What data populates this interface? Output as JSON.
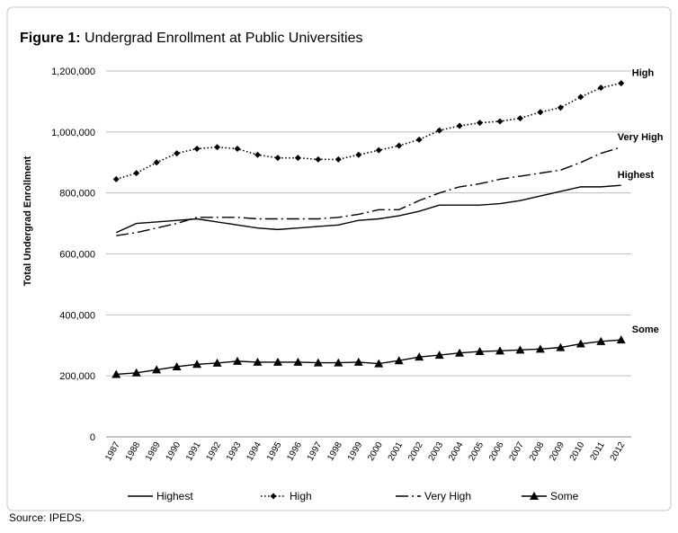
{
  "chart_data": {
    "type": "line",
    "title_lead": "Figure 1:",
    "title": "Undergrad Enrollment at Public Universities",
    "y_label": "Total Undergrad Enrollment",
    "source": "Source: IPEDS.",
    "categories": [
      "1987",
      "1988",
      "1989",
      "1990",
      "1991",
      "1992",
      "1993",
      "1994",
      "1995",
      "1996",
      "1997",
      "1998",
      "1999",
      "2000",
      "2001",
      "2002",
      "2003",
      "2004",
      "2005",
      "2006",
      "2007",
      "2008",
      "2009",
      "2010",
      "2011",
      "2012"
    ],
    "ylim": [
      0,
      1200000
    ],
    "yticks": [
      0,
      {
        "value": 200000,
        "label": "200,000"
      },
      {
        "value": 400000,
        "label": "400,000"
      },
      {
        "value": 600000,
        "label": "600,000"
      },
      {
        "value": 800000,
        "label": "800,000"
      },
      {
        "value": 1000000,
        "label": "1,000,000"
      },
      {
        "value": 1200000,
        "label": "1,200,000"
      }
    ],
    "grid": true,
    "legend": "bottom",
    "series": [
      {
        "name": "Highest",
        "color": "#000000",
        "dash": "none",
        "marker": "none",
        "values": [
          670000,
          700000,
          705000,
          710000,
          715000,
          705000,
          695000,
          685000,
          680000,
          685000,
          690000,
          695000,
          710000,
          715000,
          725000,
          740000,
          760000,
          760000,
          760000,
          765000,
          775000,
          790000,
          805000,
          820000,
          820000,
          825000
        ]
      },
      {
        "name": "High",
        "color": "#000000",
        "dash": "1.5 2.5",
        "marker": "diamond",
        "values": [
          845000,
          865000,
          900000,
          930000,
          945000,
          950000,
          945000,
          925000,
          915000,
          915000,
          910000,
          910000,
          925000,
          940000,
          955000,
          975000,
          1005000,
          1020000,
          1030000,
          1035000,
          1045000,
          1065000,
          1080000,
          1115000,
          1145000,
          1160000
        ]
      },
      {
        "name": "Very High",
        "color": "#000000",
        "dash": "14 4 2 4",
        "marker": "none",
        "values": [
          660000,
          670000,
          685000,
          700000,
          720000,
          720000,
          720000,
          715000,
          715000,
          715000,
          715000,
          720000,
          730000,
          745000,
          745000,
          775000,
          800000,
          820000,
          830000,
          845000,
          855000,
          865000,
          875000,
          900000,
          930000,
          950000
        ]
      },
      {
        "name": "Some",
        "color": "#000000",
        "dash": "none",
        "marker": "triangle",
        "values": [
          205000,
          210000,
          220000,
          230000,
          238000,
          242000,
          248000,
          245000,
          245000,
          245000,
          243000,
          243000,
          245000,
          240000,
          250000,
          262000,
          268000,
          275000,
          280000,
          282000,
          285000,
          288000,
          293000,
          305000,
          313000,
          318000
        ]
      }
    ]
  }
}
